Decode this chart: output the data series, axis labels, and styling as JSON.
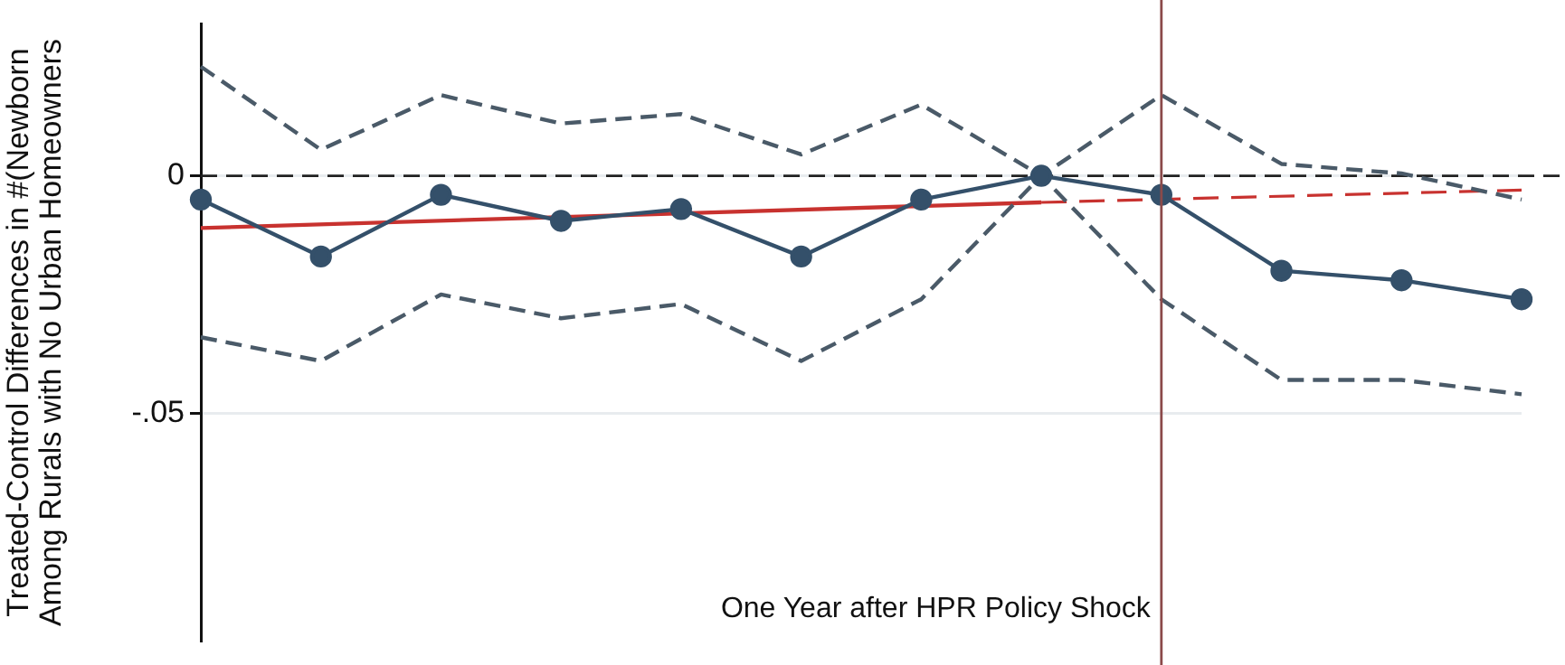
{
  "chart_data": {
    "type": "line",
    "ylabel": "Treated-Control Differences in #(Newborn\nAmong Rurals with No Urban Homeowners",
    "categories": [
      null,
      null,
      null,
      null,
      null,
      null,
      null,
      null,
      null,
      null,
      null,
      null
    ],
    "ylim": [
      -0.098,
      0.032
    ],
    "yticks": [
      {
        "value": -0.05,
        "label": "-.05"
      },
      {
        "value": 0,
        "label": "0"
      }
    ],
    "series": [
      {
        "color": "#34506a",
        "marker": "circle",
        "line_style": "solid",
        "values": [
          -0.005,
          -0.017,
          -0.004,
          -0.0095,
          -0.007,
          -0.017,
          -0.005,
          0,
          -0.004,
          -0.02,
          -0.022,
          -0.026
        ]
      },
      {
        "color": "#4a5a68",
        "marker": "none",
        "line_style": "dashed",
        "values": [
          0.023,
          0.0055,
          0.017,
          0.011,
          0.013,
          0.0045,
          0.015,
          0,
          0.017,
          0.0025,
          0.0005,
          -0.005
        ]
      },
      {
        "color": "#4a5a68",
        "marker": "none",
        "line_style": "dashed",
        "values": [
          -0.034,
          -0.039,
          -0.025,
          -0.03,
          -0.027,
          -0.039,
          -0.026,
          0,
          -0.026,
          -0.043,
          -0.043,
          -0.046
        ]
      },
      {
        "color": "#c8322f",
        "marker": "none",
        "line_style": "solid",
        "values": [
          -0.011,
          null,
          null,
          null,
          null,
          null,
          null,
          -0.0056,
          null,
          null,
          null,
          null
        ]
      },
      {
        "color": "#c8322f",
        "marker": "none",
        "line_style": "dashed",
        "values": [
          null,
          null,
          null,
          null,
          null,
          null,
          null,
          -0.0056,
          null,
          null,
          null,
          -0.003
        ]
      }
    ],
    "ref_lines": [
      {
        "axis": "y",
        "value": 0,
        "color": "#222222",
        "line_style": "dashed"
      }
    ],
    "annotations": [
      "One Year after HPR Policy Shock"
    ],
    "grid": "y",
    "legend": false,
    "tick_labels": "y"
  }
}
